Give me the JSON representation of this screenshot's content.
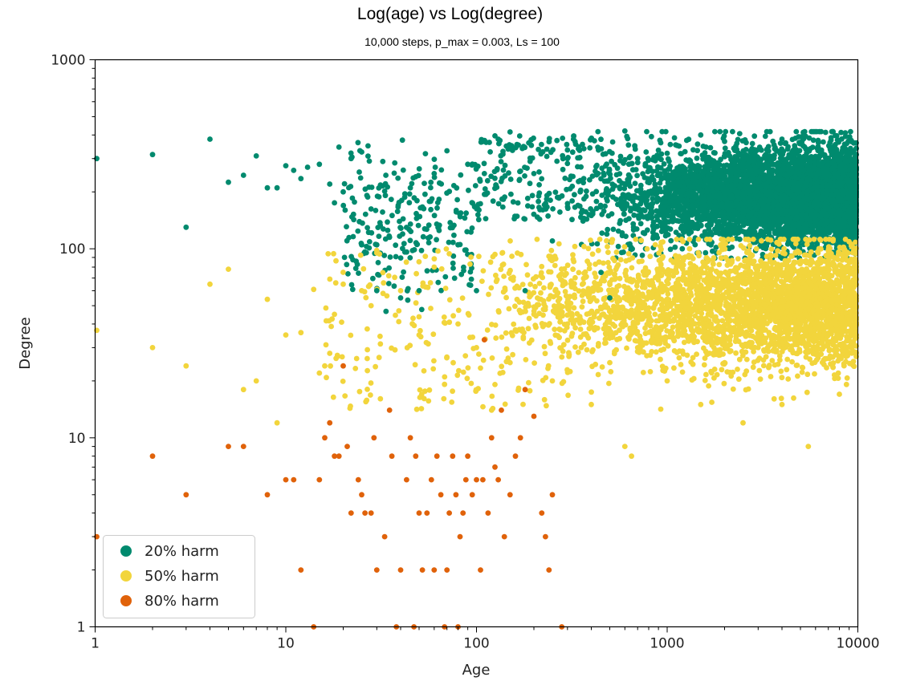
{
  "chart_data": {
    "type": "scatter",
    "title": "Log(age) vs Log(degree)",
    "subtitle": "10,000 steps, p_max = 0.003, Ls = 100",
    "xlabel": "Age",
    "ylabel": "Degree",
    "xscale": "log",
    "yscale": "log",
    "xlim": [
      1,
      10000
    ],
    "ylim": [
      1,
      1000
    ],
    "xticks": [
      1,
      10,
      100,
      1000,
      10000
    ],
    "xtick_labels": [
      "1",
      "10",
      "100",
      "1000",
      "10000"
    ],
    "yticks": [
      1,
      10,
      100,
      1000
    ],
    "ytick_labels": [
      "1",
      "10",
      "100",
      "1000"
    ],
    "grid": false,
    "legend_position": "bottom-left",
    "series": [
      {
        "name": "20% harm",
        "color": "#008a6e",
        "points": [
          [
            1,
            300
          ],
          [
            2,
            315
          ],
          [
            3,
            130
          ],
          [
            4,
            380
          ],
          [
            5,
            225
          ],
          [
            6,
            245
          ],
          [
            7,
            310
          ],
          [
            8,
            210
          ],
          [
            9,
            210
          ],
          [
            10,
            275
          ],
          [
            11,
            260
          ],
          [
            12,
            235
          ],
          [
            13,
            270
          ],
          [
            15,
            280
          ],
          [
            17,
            220
          ],
          [
            18,
            175
          ],
          [
            19,
            345
          ],
          [
            20,
            200
          ],
          [
            22,
            300
          ],
          [
            25,
            325
          ],
          [
            25,
            105
          ],
          [
            27,
            350
          ],
          [
            30,
            105
          ],
          [
            30,
            60
          ],
          [
            35,
            115
          ],
          [
            40,
            55
          ],
          [
            45,
            210
          ],
          [
            50,
            60
          ],
          [
            60,
            250
          ],
          [
            70,
            330
          ],
          [
            80,
            105
          ],
          [
            90,
            280
          ],
          [
            100,
            60
          ],
          [
            110,
            250
          ],
          [
            130,
            380
          ],
          [
            150,
            415
          ],
          [
            180,
            60
          ],
          [
            200,
            250
          ],
          [
            250,
            110
          ],
          [
            300,
            300
          ],
          [
            350,
            200
          ],
          [
            400,
            150
          ],
          [
            450,
            75
          ],
          [
            500,
            55
          ],
          [
            600,
            420
          ],
          [
            700,
            300
          ],
          [
            800,
            200
          ],
          [
            900,
            150
          ],
          [
            1000,
            320
          ],
          [
            1200,
            100
          ],
          [
            1500,
            400
          ],
          [
            2000,
            370
          ],
          [
            2500,
            280
          ],
          [
            3000,
            230
          ],
          [
            4000,
            380
          ],
          [
            5000,
            270
          ],
          [
            6000,
            300
          ],
          [
            7000,
            250
          ],
          [
            8000,
            180
          ],
          [
            9000,
            160
          ],
          [
            10000,
            200
          ]
        ],
        "dense_cloud": {
          "description": "dense cluster from age ~200 to 10000, degree ~90 to 400, densest at age 1000-10000 and degree 120-300"
        }
      },
      {
        "name": "50% harm",
        "color": "#f2d53c",
        "points": [
          [
            1,
            37
          ],
          [
            2,
            30
          ],
          [
            3,
            24
          ],
          [
            4,
            65
          ],
          [
            5,
            78
          ],
          [
            6,
            18
          ],
          [
            7,
            20
          ],
          [
            8,
            54
          ],
          [
            9,
            12
          ],
          [
            10,
            35
          ],
          [
            12,
            36
          ],
          [
            14,
            61
          ],
          [
            15,
            22
          ],
          [
            16,
            24
          ],
          [
            17,
            28
          ],
          [
            18,
            45
          ],
          [
            20,
            65
          ],
          [
            25,
            60
          ],
          [
            28,
            50
          ],
          [
            30,
            95
          ],
          [
            40,
            60
          ],
          [
            50,
            35
          ],
          [
            60,
            80
          ],
          [
            80,
            40
          ],
          [
            100,
            30
          ],
          [
            120,
            14
          ],
          [
            150,
            25
          ],
          [
            200,
            45
          ],
          [
            250,
            20
          ],
          [
            300,
            40
          ],
          [
            400,
            15
          ],
          [
            500,
            25
          ],
          [
            600,
            9
          ],
          [
            650,
            8
          ],
          [
            700,
            30
          ],
          [
            1000,
            20
          ],
          [
            1500,
            15
          ],
          [
            2000,
            25
          ],
          [
            2500,
            12
          ],
          [
            3000,
            30
          ],
          [
            4000,
            15
          ],
          [
            5000,
            40
          ],
          [
            5500,
            9
          ],
          [
            6000,
            30
          ],
          [
            7000,
            50
          ],
          [
            8000,
            17
          ],
          [
            9000,
            40
          ],
          [
            10000,
            35
          ]
        ],
        "dense_cloud": {
          "description": "dense cluster from age ~100 to 10000, degree ~15 to 100, densest at age 1500-10000 and degree 30-70"
        }
      },
      {
        "name": "80% harm",
        "color": "#e0620a",
        "points": [
          [
            1,
            3
          ],
          [
            2,
            8
          ],
          [
            3,
            5
          ],
          [
            5,
            9
          ],
          [
            6,
            9
          ],
          [
            8,
            5
          ],
          [
            10,
            6
          ],
          [
            11,
            6
          ],
          [
            12,
            2
          ],
          [
            14,
            1
          ],
          [
            15,
            6
          ],
          [
            16,
            10
          ],
          [
            17,
            12
          ],
          [
            18,
            8
          ],
          [
            19,
            8
          ],
          [
            20,
            24
          ],
          [
            21,
            9
          ],
          [
            22,
            4
          ],
          [
            24,
            6
          ],
          [
            25,
            5
          ],
          [
            26,
            4
          ],
          [
            28,
            4
          ],
          [
            29,
            10
          ],
          [
            30,
            2
          ],
          [
            33,
            3
          ],
          [
            35,
            14
          ],
          [
            36,
            8
          ],
          [
            38,
            1
          ],
          [
            40,
            2
          ],
          [
            43,
            6
          ],
          [
            45,
            10
          ],
          [
            47,
            1
          ],
          [
            48,
            8
          ],
          [
            50,
            4
          ],
          [
            52,
            2
          ],
          [
            55,
            4
          ],
          [
            58,
            6
          ],
          [
            60,
            2
          ],
          [
            62,
            8
          ],
          [
            65,
            5
          ],
          [
            68,
            1
          ],
          [
            70,
            2
          ],
          [
            72,
            4
          ],
          [
            75,
            8
          ],
          [
            78,
            5
          ],
          [
            80,
            1
          ],
          [
            82,
            3
          ],
          [
            85,
            4
          ],
          [
            88,
            6
          ],
          [
            90,
            8
          ],
          [
            95,
            5
          ],
          [
            100,
            6
          ],
          [
            105,
            2
          ],
          [
            108,
            6
          ],
          [
            110,
            33
          ],
          [
            115,
            4
          ],
          [
            120,
            10
          ],
          [
            125,
            7
          ],
          [
            130,
            6
          ],
          [
            135,
            14
          ],
          [
            140,
            3
          ],
          [
            150,
            5
          ],
          [
            160,
            8
          ],
          [
            170,
            10
          ],
          [
            180,
            18
          ],
          [
            200,
            13
          ],
          [
            220,
            4
          ],
          [
            230,
            3
          ],
          [
            240,
            2
          ],
          [
            250,
            5
          ],
          [
            280,
            1
          ]
        ]
      }
    ]
  }
}
